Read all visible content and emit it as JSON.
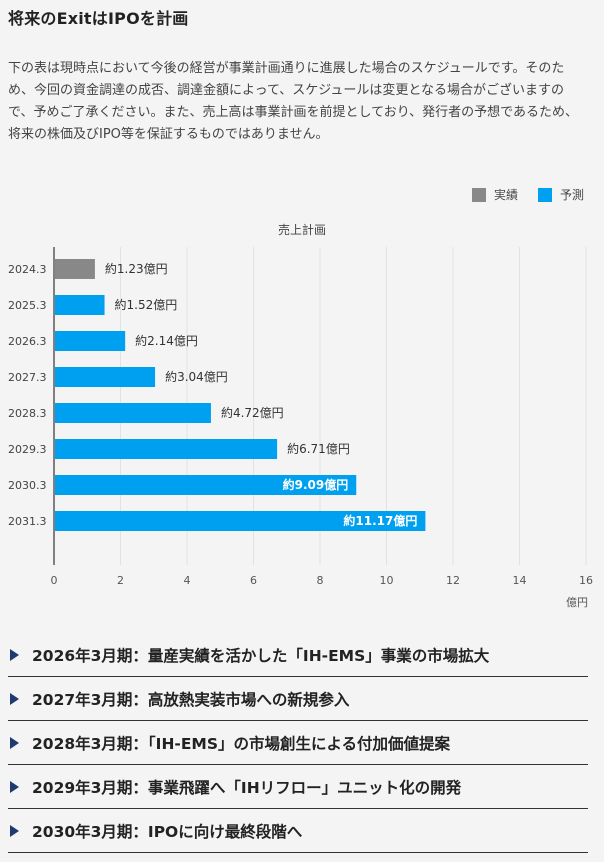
{
  "heading": "将来のExitはIPOを計画",
  "note": "下の表は現時点において今後の経営が事業計画通りに進展した場合のスケジュールです。そのため、今回の資金調達の成否、調達金額によって、スケジュールは変更となる場合がございますので、予めご了承ください。また、売上高は事業計画を前提としており、発行者の予想であるため、将来の株価及びIPO等を保証するものではありません。",
  "legend": [
    {
      "label": "実績",
      "color": "#888888"
    },
    {
      "label": "予測",
      "color": "#00a0f0"
    }
  ],
  "chart_data": {
    "type": "bar",
    "orientation": "horizontal",
    "title": "売上計画",
    "unit": "億円",
    "categories": [
      "2024.3",
      "2025.3",
      "2026.3",
      "2027.3",
      "2028.3",
      "2029.3",
      "2030.3",
      "2031.3"
    ],
    "values": [
      1.23,
      1.52,
      2.14,
      3.04,
      4.72,
      6.71,
      9.09,
      11.17
    ],
    "status": [
      "実績",
      "予測",
      "予測",
      "予測",
      "予測",
      "予測",
      "予測",
      "予測"
    ],
    "data_labels": [
      "約1.23億円",
      "約1.52億円",
      "約2.14億円",
      "約3.04億円",
      "約4.72億円",
      "約6.71億円",
      "約9.09億円",
      "約11.17億円"
    ],
    "label_inside": [
      false,
      false,
      false,
      false,
      false,
      false,
      true,
      true
    ],
    "xlim": [
      0,
      16
    ],
    "xticks": [
      0,
      2,
      4,
      6,
      8,
      10,
      12,
      14,
      16
    ],
    "grid": true,
    "colors": {
      "actual": "#888888",
      "forecast": "#00a0f0",
      "grid": "#e2e2e2",
      "axis": "#333333"
    }
  },
  "milestones": [
    {
      "label": "2026年3月期：量産実績を活かした「IH-EMS」事業の市場拡大"
    },
    {
      "label": "2027年3月期：高放熱実装市場への新規参入"
    },
    {
      "label": "2028年3月期：「IH-EMS」の市場創生による付加価値提案"
    },
    {
      "label": "2029年3月期：事業飛躍へ「IHリフロー」ユニット化の開発"
    },
    {
      "label": "2030年3月期：IPOに向け最終段階へ"
    }
  ]
}
